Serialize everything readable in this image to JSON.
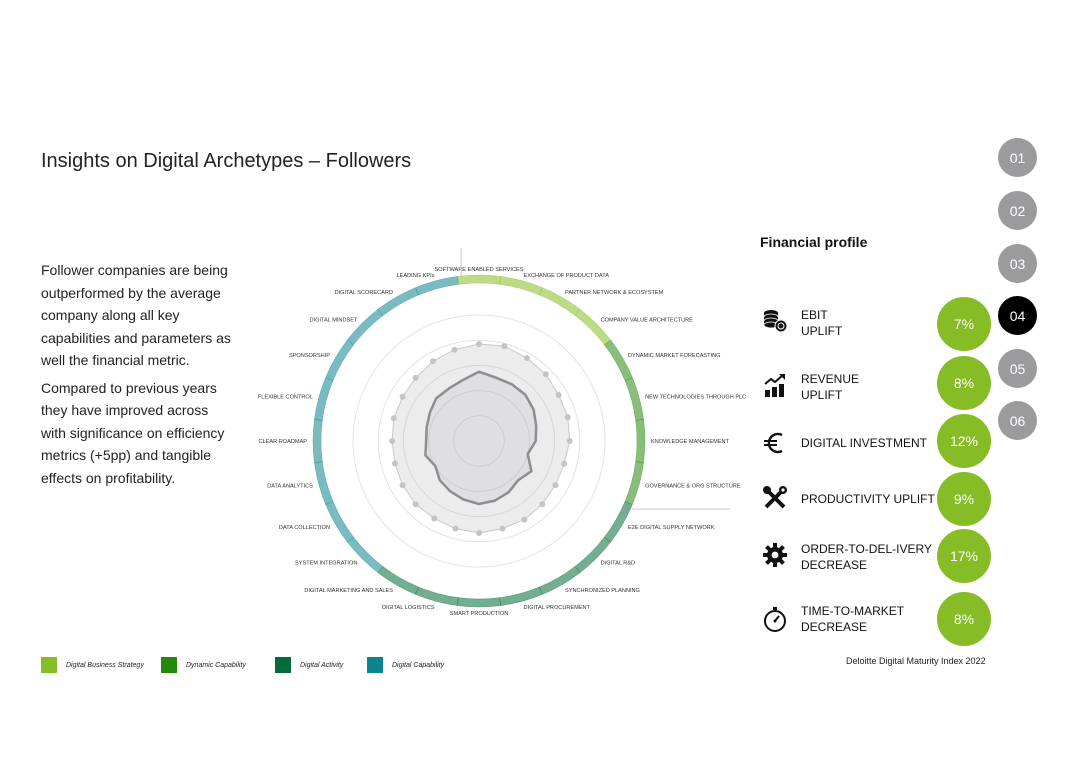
{
  "page": {
    "title": "Insights on Digital Archetypes – Followers"
  },
  "intro": {
    "paragraph1": "Follower companies are being outperformed by the average company along all key capabilities and parameters as well the financial metric.",
    "paragraph2": "Compared to previous years they have improved across with significance on efficiency metrics (+5pp) and tangible effects on profitability."
  },
  "financial_profile": {
    "heading": "Financial profile",
    "metrics": [
      {
        "label_lines": [
          "EBIT",
          "UPLIFT"
        ],
        "value": "7%",
        "icon": "coins-stack-icon"
      },
      {
        "label_lines": [
          "REVENUE",
          "UPLIFT"
        ],
        "value": "8%",
        "icon": "growth-chart-icon"
      },
      {
        "label_lines": [
          "DIGITAL INVESTMENT"
        ],
        "value": "12%",
        "icon": "euro-icon"
      },
      {
        "label_lines": [
          "PRODUCTIVITY UPLIFT"
        ],
        "value": "9%",
        "icon": "tools-icon"
      },
      {
        "label_lines": [
          "ORDER-TO-DEL-IVERY",
          "DECREASE"
        ],
        "value": "17%",
        "icon": "gear-icon"
      },
      {
        "label_lines": [
          "TIME-TO-MARKET",
          "DECREASE"
        ],
        "value": "8%",
        "icon": "stopwatch-icon"
      }
    ]
  },
  "nav": {
    "items": [
      "01",
      "02",
      "03",
      "04",
      "05",
      "06"
    ],
    "active_index": 3
  },
  "legend": [
    {
      "label": "Digital Business Strategy",
      "color": "#86bc25"
    },
    {
      "label": "Dynamic Capability",
      "color": "#26890d"
    },
    {
      "label": "Digital Activity",
      "color": "#046a38"
    },
    {
      "label": "Digital Capability",
      "color": "#0d8390"
    }
  ],
  "source": "Deloitte Digital Maturity Index 2022",
  "colors": {
    "accent_green": "#86bc25",
    "dynamic_green": "#26890d",
    "activity_green": "#046a38",
    "capability_teal": "#0d8390",
    "nav_inactive": "#9b9b9e",
    "nav_active": "#000000"
  },
  "chart_data": {
    "type": "radar",
    "title": "",
    "range": [
      0,
      100
    ],
    "categories": [
      "SOFTWARE ENABLED SERVICES",
      "EXCHANGE OF PRODUCT DATA",
      "PARTNER NETWORK & ECOSYSTEM",
      "COMPANY VALUE ARCHITECTURE",
      "DYNAMIC MARKET FORECASTING",
      "NEW TECHNOLOGIES THROUGH PLC",
      "KNOWLEDGE MANAGEMENT",
      "GOVERNANCE & ORG STRUCTURE",
      "E2E DIGITAL SUPPLY NETWORK",
      "DIGITAL R&D",
      "SYNCHRONIZED PLANNING",
      "DIGITAL PROCUREMENT",
      "SMART PRODUCTION",
      "DIGITAL LOGISTICS",
      "DIGITAL MARKETING AND SALES",
      "SYSTEM INTEGRATION",
      "DATA COLLECTION",
      "DATA ANALYTICS",
      "CLEAR ROADMAP",
      "FLEXIBLE CONTROL",
      "SPONSORSHIP",
      "DIGITAL MINDSET",
      "DIGITAL SCORECARD",
      "LEADING KPIs"
    ],
    "category_groups": [
      "Digital Business Strategy",
      "Digital Business Strategy",
      "Digital Business Strategy",
      "Digital Business Strategy",
      "Dynamic Capability",
      "Dynamic Capability",
      "Dynamic Capability",
      "Dynamic Capability",
      "Digital Activity",
      "Digital Activity",
      "Digital Activity",
      "Digital Activity",
      "Digital Activity",
      "Digital Activity",
      "Digital Activity",
      "Digital Capability",
      "Digital Capability",
      "Digital Capability",
      "Digital Capability",
      "Digital Capability",
      "Digital Capability",
      "Digital Capability",
      "Digital Capability",
      "Digital Capability"
    ],
    "series": [
      {
        "values": [
          77,
          78,
          76,
          75,
          73,
          73,
          72,
          70,
          70,
          71,
          72,
          72,
          73,
          72,
          71,
          71,
          70,
          69,
          69,
          70,
          70,
          71,
          73,
          75
        ]
      },
      {
        "values": [
          55,
          52,
          52,
          52,
          50,
          47,
          45,
          40,
          48,
          44,
          47,
          49,
          50,
          48,
          46,
          44,
          40,
          44,
          42,
          43,
          45,
          48,
          48,
          50
        ]
      }
    ]
  }
}
